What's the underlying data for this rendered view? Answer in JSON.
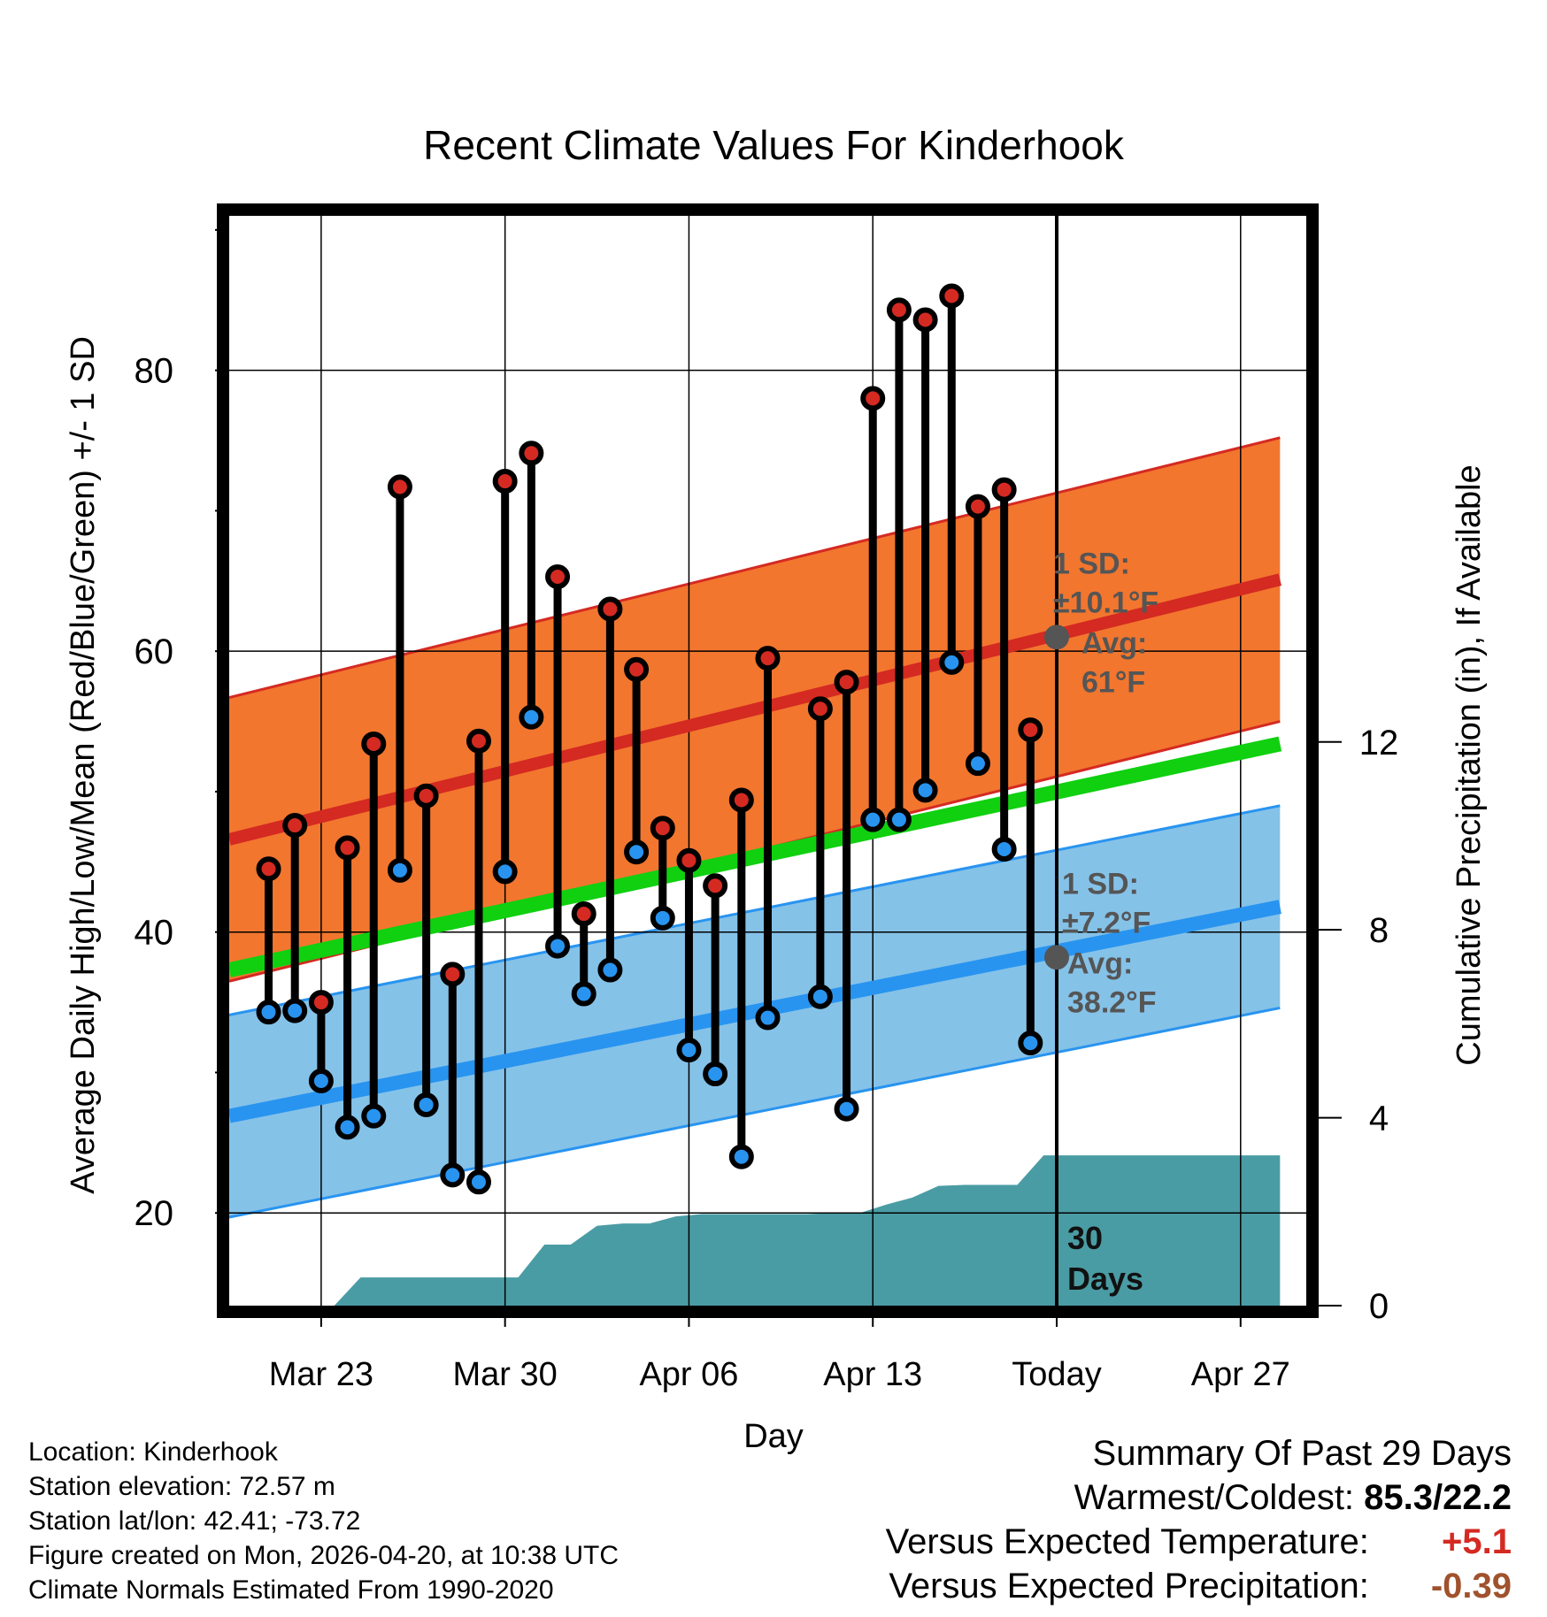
{
  "chart_data": {
    "type": "range-line",
    "title": "Recent Climate Values For Kinderhook",
    "xlabel": "Day",
    "ylabel": "Average Daily High/Low/Mean (Red/Blue/Green) +/- 1 SD",
    "y2label": "Cumulative Precipitation (in), If Available",
    "x_range": [
      -1.5,
      39.5
    ],
    "ylim": [
      13.4,
      91
    ],
    "y_ticks": [
      20,
      40,
      60,
      80
    ],
    "y_minor_ticks": [
      30,
      50,
      70,
      90
    ],
    "y2lim": [
      0,
      23.2
    ],
    "y2_ticks": [
      0,
      4,
      8,
      12
    ],
    "x_tick_positions": [
      2,
      9,
      16,
      23,
      30,
      37
    ],
    "x_tick_labels": [
      "Mar 23",
      "Mar 30",
      "Apr 06",
      "Apr 13",
      "Today",
      "Apr 27"
    ],
    "today_index": 30,
    "today_label": [
      "30",
      "Days"
    ],
    "daily": {
      "day_index": [
        0,
        1,
        2,
        3,
        4,
        5,
        6,
        7,
        8,
        9,
        10,
        11,
        12,
        13,
        14,
        15,
        16,
        17,
        18,
        19,
        20,
        21,
        22,
        23,
        24,
        25,
        26,
        27,
        28
      ],
      "high": [
        44.5,
        47.6,
        35.0,
        46.0,
        53.4,
        71.7,
        49.7,
        37.0,
        53.6,
        72.1,
        74.1,
        65.3,
        41.3,
        63.0,
        58.7,
        47.4,
        45.1,
        43.3,
        49.4,
        59.5,
        null,
        55.9,
        57.8,
        78.0,
        84.3,
        83.6,
        85.3,
        70.3,
        71.5
      ],
      "low": [
        34.3,
        34.4,
        29.4,
        26.1,
        26.9,
        44.4,
        27.7,
        22.7,
        22.2,
        44.3,
        55.3,
        39.0,
        35.6,
        37.3,
        45.7,
        41.0,
        31.6,
        29.9,
        24.0,
        33.9,
        null,
        35.4,
        27.4,
        48.0,
        48.0,
        50.1,
        59.2,
        52.0,
        45.9
      ],
      "extra_day": {
        "day_index": 29,
        "high": 54.4,
        "low": 32.1
      }
    },
    "normals": {
      "x_start": -1.5,
      "x_end": 38.5,
      "high_mean": [
        46.6,
        65.1
      ],
      "high_sd": 10.1,
      "low_mean": [
        26.9,
        41.8
      ],
      "low_sd": 7.2,
      "mean_line": [
        37.3,
        53.4
      ]
    },
    "precip_cumulative": {
      "x": [
        -1.5,
        2.5,
        3.5,
        6.5,
        7.5,
        9.5,
        10.5,
        11.5,
        12.5,
        13.5,
        14.5,
        15.5,
        16.5,
        17.5,
        18.5,
        19.5,
        20.5,
        21.5,
        22.5,
        23.5,
        24.5,
        25.5,
        26.5,
        27.5,
        28.5,
        29.5,
        38.5
      ],
      "y": [
        0.0,
        0.0,
        0.6,
        0.6,
        0.6,
        0.6,
        1.3,
        1.3,
        1.7,
        1.75,
        1.75,
        1.9,
        1.95,
        1.95,
        1.95,
        1.95,
        1.95,
        1.97,
        1.97,
        2.15,
        2.3,
        2.55,
        2.57,
        2.57,
        2.57,
        3.2,
        3.2
      ]
    },
    "annotations": {
      "high": {
        "sd_label": "1 SD:",
        "sd_value": "±10.1°F",
        "avg_label": "Avg:",
        "avg_value": "61°F",
        "avg": 61.0
      },
      "low": {
        "sd_label": "1 SD:",
        "sd_value": "±7.2°F",
        "avg_label": "Avg:",
        "avg_value": "38.2°F",
        "avg": 38.2
      }
    },
    "colors": {
      "high_band": "#f2762e",
      "high_line": "#d42a22",
      "low_band": "#85c2e8",
      "low_line": "#2894f0",
      "mean_line": "#10d010",
      "precip": "#4a9ca4",
      "high_dot": "#d42a22",
      "low_dot": "#2894f0",
      "annotation": "#555555"
    }
  },
  "footer": {
    "location": "Location: Kinderhook",
    "elevation": "Station elevation: 72.57 m",
    "latlon": "Station lat/lon: 42.41; -73.72",
    "created": "Figure created on Mon, 2026-04-20, at 10:38 UTC",
    "normals": "Climate Normals Estimated From 1990-2020"
  },
  "summary": {
    "title": "Summary Of Past 29 Days",
    "warm_cold_label": "Warmest/Coldest:",
    "warm_cold_value": "85.3/22.2",
    "temp_label": "Versus Expected Temperature:",
    "temp_value": "+5.1",
    "temp_color": "#d42a22",
    "precip_label": "Versus Expected Precipitation:",
    "precip_value": "-0.39",
    "precip_color": "#a0522d"
  }
}
